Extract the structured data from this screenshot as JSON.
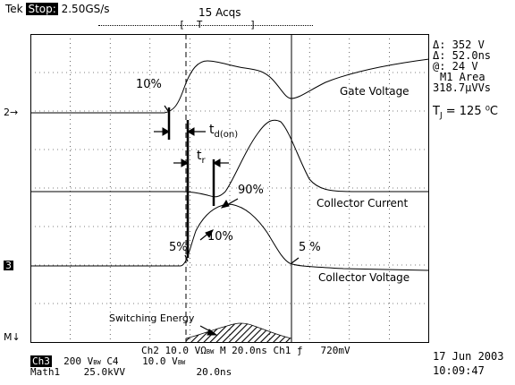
{
  "header": {
    "brand": "Tek",
    "run_state": "Stop:",
    "sample_rate": "2.50GS/s",
    "acqs": "15 Acqs"
  },
  "readout": {
    "delta_v": "Δ: 352 V",
    "delta_t": "Δ: 52.0ns",
    "at": "@: 24 V",
    "area_label": "M1 Area",
    "area_value": "318.7µVVs",
    "temp": "T",
    "temp_sub": "J",
    "temp_value": "= 125 ⁰C"
  },
  "annotations": {
    "gate_voltage": "Gate Voltage",
    "collector_current": "Collector Current",
    "collector_voltage": "Collector Voltage",
    "switching_energy": "Switching Energy",
    "pct10_gate": "10%",
    "tdon": "t",
    "tdon_sub": "d(on)",
    "tr": "t",
    "tr_sub": "r",
    "pct90": "90%",
    "pct10_cur": "10%",
    "pct5_left": "5%",
    "pct5_right": "5 %"
  },
  "markers": {
    "ch2": "2",
    "ch3": "3",
    "math": "M"
  },
  "footer": {
    "ch2_label": "Ch2",
    "ch2_scale": "10.0 V",
    "omega": "Ω",
    "bw": "BW",
    "timebase": "M 20.0ns",
    "trig": "Ch1 ƒ",
    "trig_level": "720mV",
    "ch3_label": "Ch3",
    "ch3_scale": "200 V",
    "bw2": "BW",
    "c4": "C4",
    "c4_scale": "10.0 V",
    "bw3": "BW",
    "math_label": "Math1",
    "math_scale": "25.0kVV",
    "math_time": "20.0ns",
    "date": "17 Jun 2003",
    "time": "10:09:47"
  }
}
